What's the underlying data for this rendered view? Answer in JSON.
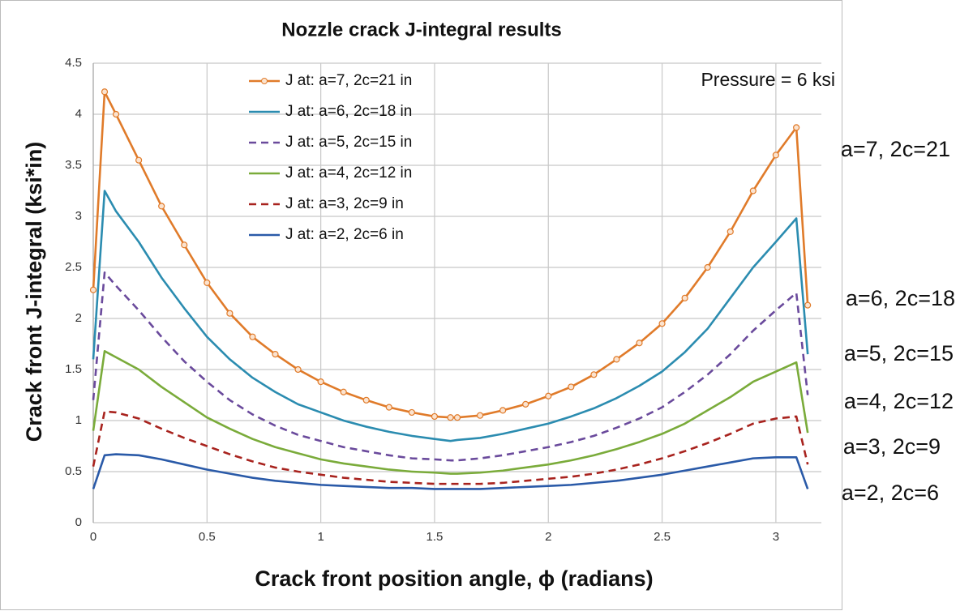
{
  "chart_data": {
    "type": "line",
    "title": "Nozzle crack J-integral results",
    "x_label": "Crack front position angle, ϕ (radians)",
    "y_label": "Crack front J-integral (ksi*in)",
    "annotations": [
      "Pressure = 6 ksi",
      "a=7, 2c=21",
      "a=6, 2c=18",
      "a=5, 2c=15",
      "a=4, 2c=12",
      "a=3, 2c=9",
      "a=2, 2c=6"
    ],
    "x": [
      0,
      0.05,
      0.1,
      0.2,
      0.3,
      0.4,
      0.5,
      0.6,
      0.7,
      0.8,
      0.9,
      1.0,
      1.1,
      1.2,
      1.3,
      1.4,
      1.5,
      1.57,
      1.6,
      1.7,
      1.8,
      1.9,
      2.0,
      2.1,
      2.2,
      2.3,
      2.4,
      2.5,
      2.6,
      2.7,
      2.8,
      2.9,
      3.0,
      3.09,
      3.14
    ],
    "xlim": [
      0,
      3.2
    ],
    "xticks": [
      0,
      0.5,
      1,
      1.5,
      2,
      2.5,
      3
    ],
    "ylim": [
      0,
      4.5
    ],
    "yticks": [
      0,
      0.5,
      1,
      1.5,
      2,
      2.5,
      3,
      3.5,
      4,
      4.5
    ],
    "grid": true,
    "series": [
      {
        "name": "J at: a=7, 2c=21 in",
        "color": "#e07b2a",
        "dashed": false,
        "markers": true,
        "values": [
          2.28,
          4.22,
          4.0,
          3.55,
          3.1,
          2.72,
          2.35,
          2.05,
          1.82,
          1.65,
          1.5,
          1.38,
          1.28,
          1.2,
          1.13,
          1.08,
          1.04,
          1.03,
          1.03,
          1.05,
          1.1,
          1.16,
          1.24,
          1.33,
          1.45,
          1.6,
          1.76,
          1.95,
          2.2,
          2.5,
          2.85,
          3.25,
          3.6,
          3.87,
          2.13
        ]
      },
      {
        "name": "J at: a=6, 2c=18 in",
        "color": "#2b8cb0",
        "dashed": false,
        "markers": false,
        "values": [
          1.6,
          3.25,
          3.05,
          2.75,
          2.4,
          2.1,
          1.82,
          1.6,
          1.42,
          1.28,
          1.16,
          1.08,
          1.0,
          0.94,
          0.89,
          0.85,
          0.82,
          0.8,
          0.81,
          0.83,
          0.87,
          0.92,
          0.97,
          1.04,
          1.12,
          1.22,
          1.34,
          1.48,
          1.67,
          1.9,
          2.2,
          2.5,
          2.75,
          2.98,
          1.65
        ]
      },
      {
        "name": "J at: a=5, 2c=15 in",
        "color": "#6a4a9c",
        "dashed": true,
        "markers": false,
        "values": [
          1.2,
          2.45,
          2.32,
          2.08,
          1.82,
          1.58,
          1.38,
          1.2,
          1.06,
          0.95,
          0.86,
          0.8,
          0.74,
          0.7,
          0.66,
          0.63,
          0.62,
          0.61,
          0.61,
          0.63,
          0.66,
          0.7,
          0.74,
          0.79,
          0.85,
          0.93,
          1.02,
          1.13,
          1.28,
          1.45,
          1.65,
          1.88,
          2.08,
          2.25,
          1.25
        ]
      },
      {
        "name": "J at: a=4, 2c=12 in",
        "color": "#7aab3a",
        "dashed": false,
        "markers": false,
        "values": [
          0.9,
          1.68,
          1.62,
          1.5,
          1.33,
          1.18,
          1.03,
          0.92,
          0.82,
          0.74,
          0.68,
          0.62,
          0.58,
          0.55,
          0.52,
          0.5,
          0.49,
          0.48,
          0.48,
          0.49,
          0.51,
          0.54,
          0.57,
          0.61,
          0.66,
          0.72,
          0.79,
          0.87,
          0.97,
          1.1,
          1.23,
          1.38,
          1.48,
          1.57,
          0.88
        ]
      },
      {
        "name": "J at: a=3, 2c=9 in",
        "color": "#a8231e",
        "dashed": true,
        "markers": false,
        "values": [
          0.55,
          1.09,
          1.08,
          1.02,
          0.92,
          0.83,
          0.75,
          0.67,
          0.6,
          0.54,
          0.5,
          0.47,
          0.44,
          0.42,
          0.4,
          0.39,
          0.38,
          0.38,
          0.38,
          0.38,
          0.39,
          0.41,
          0.43,
          0.45,
          0.48,
          0.52,
          0.57,
          0.63,
          0.7,
          0.78,
          0.87,
          0.97,
          1.02,
          1.04,
          0.57
        ]
      },
      {
        "name": "J at: a=2, 2c=6 in",
        "color": "#2a5aa8",
        "dashed": false,
        "markers": false,
        "values": [
          0.33,
          0.66,
          0.67,
          0.66,
          0.62,
          0.57,
          0.52,
          0.48,
          0.44,
          0.41,
          0.39,
          0.37,
          0.36,
          0.35,
          0.34,
          0.34,
          0.33,
          0.33,
          0.33,
          0.33,
          0.34,
          0.35,
          0.36,
          0.37,
          0.39,
          0.41,
          0.44,
          0.47,
          0.51,
          0.55,
          0.59,
          0.63,
          0.64,
          0.64,
          0.33
        ]
      }
    ]
  }
}
